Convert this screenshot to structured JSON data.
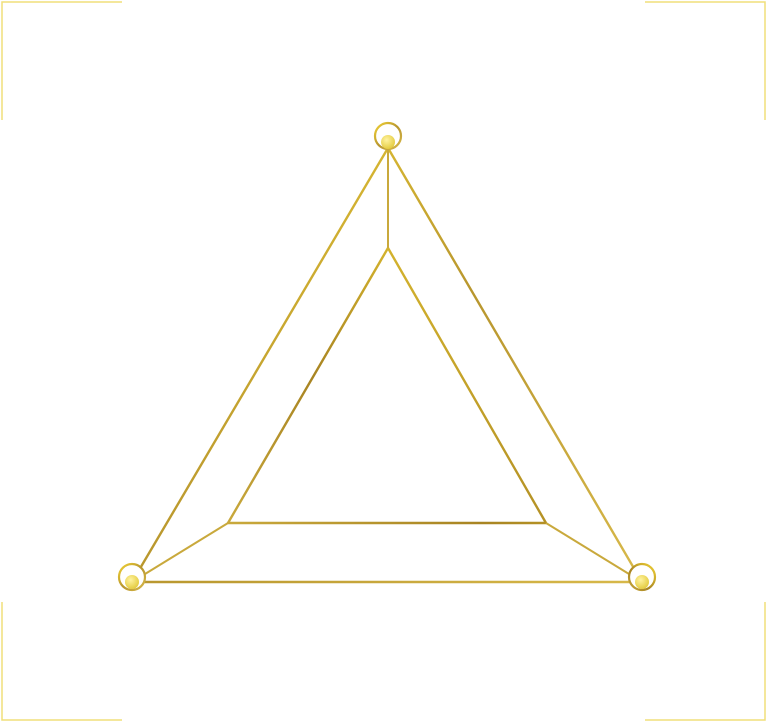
{
  "colors": {
    "background": "#ffffff",
    "outline_gold": "#b8962e",
    "bright_gold": "#f2d335",
    "node_fill": "#e9d44a",
    "frame": "#f0df7a"
  },
  "icons": {
    "corner_marks": "corner-bracket-icon",
    "vertex_nodes": "ring-node-icon"
  }
}
